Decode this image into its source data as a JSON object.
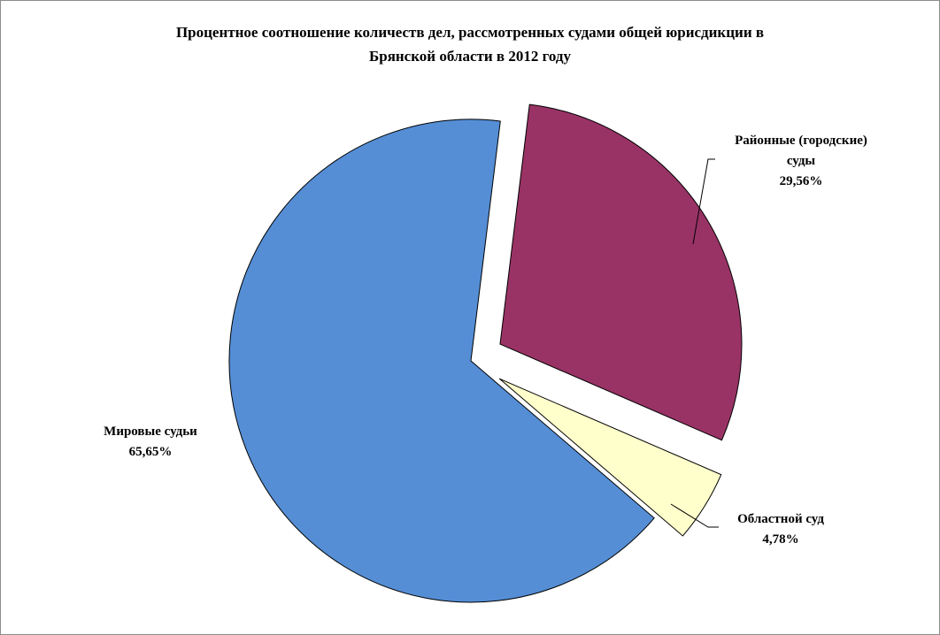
{
  "chart_data": {
    "type": "pie",
    "title_line1": "Процентное соотношение количеств дел, рассмотренных судами общей юрисдикции в",
    "title_line2": "Брянской области в 2012 году",
    "slices": [
      {
        "label_line1": "Районные (городские)",
        "label_line2": "суды",
        "value": 29.56,
        "value_text": "29,56%",
        "color": "#993366",
        "exploded": true
      },
      {
        "label_line1": "Областной суд",
        "label_line2": "",
        "value": 4.78,
        "value_text": "4,78%",
        "color": "#FFFFCC",
        "exploded": true
      },
      {
        "label_line1": "Мировые судьи",
        "label_line2": "",
        "value": 65.65,
        "value_text": "65,65%",
        "color": "#558ED5",
        "exploded": false
      }
    ],
    "legend": "none",
    "data_labels": "outside"
  }
}
